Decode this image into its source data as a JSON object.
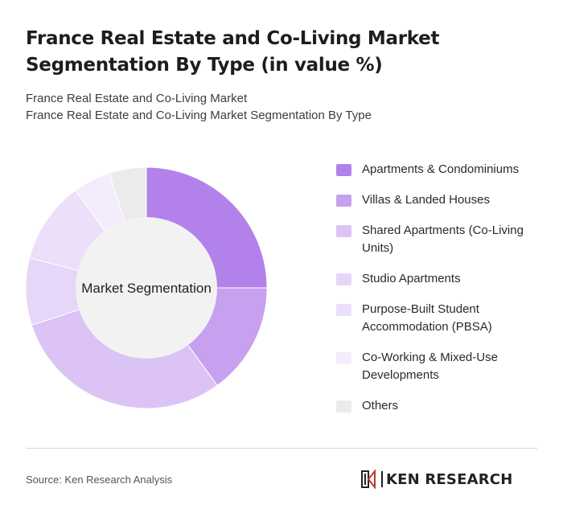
{
  "title": "France Real Estate and Co-Living Market Segmentation By Type (in value %)",
  "subtitle_line1": "France Real Estate and Co-Living Market",
  "subtitle_line2": "France Real Estate and Co-Living Market Segmentation By Type",
  "source": "Source: Ken Research Analysis",
  "logo": {
    "icon": "ken-research-k-logo",
    "text": "KEN RESEARCH"
  },
  "chart_data": {
    "type": "pie",
    "variant": "donut",
    "center_label": "Market Segmentation",
    "legend_position": "right",
    "categories": [
      "Apartments & Condominiums",
      "Villas & Landed Houses",
      "Shared Apartments (Co-Living Units)",
      "Studio Apartments",
      "Purpose-Built Student Accommodation (PBSA)",
      "Co-Working & Mixed-Use Developments",
      "Others"
    ],
    "values": [
      25,
      15,
      30,
      9,
      11,
      5,
      5
    ],
    "colors": [
      "#b281ea",
      "#c7a0f0",
      "#dcc3f6",
      "#e6d6f8",
      "#ecdff9",
      "#f3ecfc",
      "#ebebeb"
    ]
  }
}
